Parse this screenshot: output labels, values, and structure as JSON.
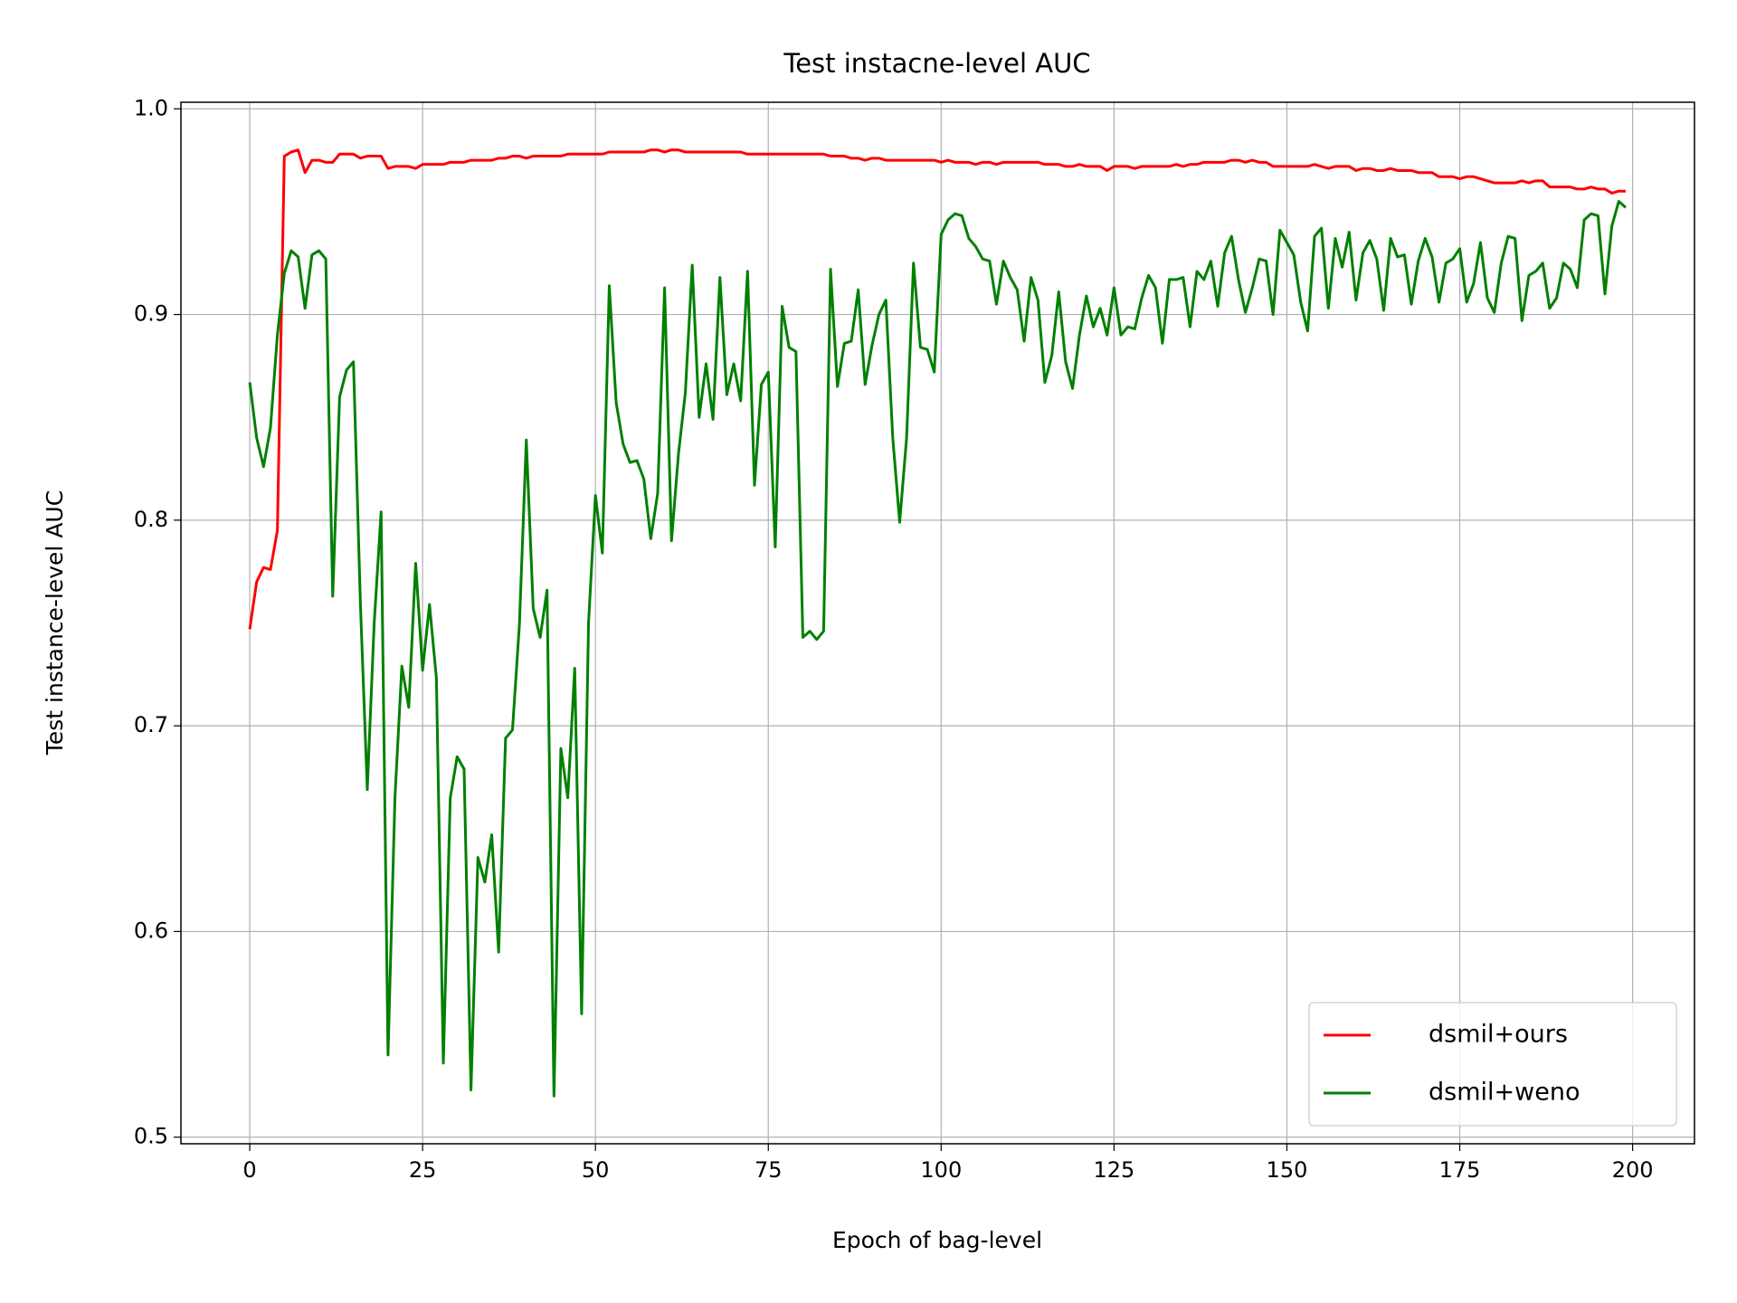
{
  "chart_data": {
    "type": "line",
    "title": "Test instacne-level AUC",
    "x_label": "Epoch of bag-level",
    "y_label": "Test instance-level AUC",
    "x": [
      0,
      1,
      2,
      3,
      4,
      5,
      6,
      7,
      8,
      9,
      10,
      11,
      12,
      13,
      14,
      15,
      16,
      17,
      18,
      19,
      20,
      21,
      22,
      23,
      24,
      25,
      26,
      27,
      28,
      29,
      30,
      31,
      32,
      33,
      34,
      35,
      36,
      37,
      38,
      39,
      40,
      41,
      42,
      43,
      44,
      45,
      46,
      47,
      48,
      49,
      50,
      51,
      52,
      53,
      54,
      55,
      56,
      57,
      58,
      59,
      60,
      61,
      62,
      63,
      64,
      65,
      66,
      67,
      68,
      69,
      70,
      71,
      72,
      73,
      74,
      75,
      76,
      77,
      78,
      79,
      80,
      81,
      82,
      83,
      84,
      85,
      86,
      87,
      88,
      89,
      90,
      91,
      92,
      93,
      94,
      95,
      96,
      97,
      98,
      99,
      100,
      101,
      102,
      103,
      104,
      105,
      106,
      107,
      108,
      109,
      110,
      111,
      112,
      113,
      114,
      115,
      116,
      117,
      118,
      119,
      120,
      121,
      122,
      123,
      124,
      125,
      126,
      127,
      128,
      129,
      130,
      131,
      132,
      133,
      134,
      135,
      136,
      137,
      138,
      139,
      140,
      141,
      142,
      143,
      144,
      145,
      146,
      147,
      148,
      149,
      150,
      151,
      152,
      153,
      154,
      155,
      156,
      157,
      158,
      159,
      160,
      161,
      162,
      163,
      164,
      165,
      166,
      167,
      168,
      169,
      170,
      171,
      172,
      173,
      174,
      175,
      176,
      177,
      178,
      179,
      180,
      181,
      182,
      183,
      184,
      185,
      186,
      187,
      188,
      189,
      190,
      191,
      192,
      193,
      194,
      195,
      196,
      197,
      198,
      199
    ],
    "series": [
      {
        "name": "dsmil+ours",
        "color": "#ff0000",
        "values": [
          0.747,
          0.77,
          0.777,
          0.776,
          0.795,
          0.977,
          0.979,
          0.98,
          0.969,
          0.975,
          0.975,
          0.974,
          0.974,
          0.978,
          0.978,
          0.978,
          0.976,
          0.977,
          0.977,
          0.977,
          0.971,
          0.972,
          0.972,
          0.972,
          0.971,
          0.973,
          0.973,
          0.973,
          0.973,
          0.974,
          0.974,
          0.974,
          0.975,
          0.975,
          0.975,
          0.975,
          0.976,
          0.976,
          0.977,
          0.977,
          0.976,
          0.977,
          0.977,
          0.977,
          0.977,
          0.977,
          0.978,
          0.978,
          0.978,
          0.978,
          0.978,
          0.978,
          0.979,
          0.979,
          0.979,
          0.979,
          0.979,
          0.979,
          0.98,
          0.98,
          0.979,
          0.98,
          0.98,
          0.979,
          0.979,
          0.979,
          0.979,
          0.979,
          0.979,
          0.979,
          0.979,
          0.979,
          0.978,
          0.978,
          0.978,
          0.978,
          0.978,
          0.978,
          0.978,
          0.978,
          0.978,
          0.978,
          0.978,
          0.978,
          0.977,
          0.977,
          0.977,
          0.976,
          0.976,
          0.975,
          0.976,
          0.976,
          0.975,
          0.975,
          0.975,
          0.975,
          0.975,
          0.975,
          0.975,
          0.975,
          0.974,
          0.975,
          0.974,
          0.974,
          0.974,
          0.973,
          0.974,
          0.974,
          0.973,
          0.974,
          0.974,
          0.974,
          0.974,
          0.974,
          0.974,
          0.973,
          0.973,
          0.973,
          0.972,
          0.972,
          0.973,
          0.972,
          0.972,
          0.972,
          0.97,
          0.972,
          0.972,
          0.972,
          0.971,
          0.972,
          0.972,
          0.972,
          0.972,
          0.972,
          0.973,
          0.972,
          0.973,
          0.973,
          0.974,
          0.974,
          0.974,
          0.974,
          0.975,
          0.975,
          0.974,
          0.975,
          0.974,
          0.974,
          0.972,
          0.972,
          0.972,
          0.972,
          0.972,
          0.972,
          0.973,
          0.972,
          0.971,
          0.972,
          0.972,
          0.972,
          0.97,
          0.971,
          0.971,
          0.97,
          0.97,
          0.971,
          0.97,
          0.97,
          0.97,
          0.969,
          0.969,
          0.969,
          0.967,
          0.967,
          0.967,
          0.966,
          0.967,
          0.967,
          0.966,
          0.965,
          0.964,
          0.964,
          0.964,
          0.964,
          0.965,
          0.964,
          0.965,
          0.965,
          0.962,
          0.962,
          0.962,
          0.962,
          0.961,
          0.961,
          0.962,
          0.961,
          0.961,
          0.959,
          0.96,
          0.96
        ]
      },
      {
        "name": "dsmil+weno",
        "color": "#008000",
        "values": [
          0.867,
          0.84,
          0.826,
          0.845,
          0.89,
          0.92,
          0.931,
          0.928,
          0.903,
          0.929,
          0.931,
          0.927,
          0.763,
          0.86,
          0.873,
          0.877,
          0.76,
          0.669,
          0.75,
          0.804,
          0.54,
          0.665,
          0.729,
          0.709,
          0.779,
          0.727,
          0.759,
          0.723,
          0.536,
          0.665,
          0.685,
          0.679,
          0.523,
          0.636,
          0.624,
          0.647,
          0.59,
          0.694,
          0.698,
          0.749,
          0.839,
          0.757,
          0.743,
          0.766,
          0.52,
          0.689,
          0.665,
          0.728,
          0.56,
          0.75,
          0.812,
          0.784,
          0.914,
          0.857,
          0.837,
          0.828,
          0.829,
          0.82,
          0.791,
          0.813,
          0.913,
          0.79,
          0.832,
          0.862,
          0.924,
          0.85,
          0.876,
          0.849,
          0.918,
          0.861,
          0.876,
          0.858,
          0.921,
          0.817,
          0.866,
          0.872,
          0.787,
          0.904,
          0.884,
          0.882,
          0.743,
          0.746,
          0.742,
          0.746,
          0.922,
          0.865,
          0.886,
          0.887,
          0.912,
          0.866,
          0.885,
          0.9,
          0.907,
          0.84,
          0.799,
          0.84,
          0.925,
          0.884,
          0.883,
          0.872,
          0.939,
          0.946,
          0.949,
          0.948,
          0.937,
          0.933,
          0.927,
          0.926,
          0.905,
          0.926,
          0.918,
          0.912,
          0.887,
          0.918,
          0.907,
          0.867,
          0.88,
          0.911,
          0.877,
          0.864,
          0.89,
          0.909,
          0.894,
          0.903,
          0.89,
          0.913,
          0.89,
          0.894,
          0.893,
          0.908,
          0.919,
          0.913,
          0.886,
          0.917,
          0.917,
          0.918,
          0.894,
          0.921,
          0.917,
          0.926,
          0.904,
          0.93,
          0.938,
          0.917,
          0.901,
          0.913,
          0.927,
          0.926,
          0.9,
          0.941,
          0.935,
          0.929,
          0.906,
          0.892,
          0.938,
          0.942,
          0.903,
          0.937,
          0.923,
          0.94,
          0.907,
          0.93,
          0.936,
          0.927,
          0.902,
          0.937,
          0.928,
          0.929,
          0.905,
          0.926,
          0.937,
          0.928,
          0.906,
          0.925,
          0.927,
          0.932,
          0.906,
          0.915,
          0.935,
          0.908,
          0.901,
          0.925,
          0.938,
          0.937,
          0.897,
          0.919,
          0.921,
          0.925,
          0.903,
          0.908,
          0.925,
          0.922,
          0.913,
          0.946,
          0.949,
          0.948,
          0.91,
          0.943,
          0.955,
          0.952
        ]
      }
    ],
    "xlim": [
      -9.95,
      208.95
    ],
    "ylim": [
      0.4968,
      1.0032
    ],
    "xticks": [
      0,
      25,
      50,
      75,
      100,
      125,
      150,
      175,
      200
    ],
    "yticks": [
      0.5,
      0.6,
      0.7,
      0.8,
      0.9,
      {
        "value": 1.0,
        "label": "1.0"
      }
    ],
    "grid": true,
    "legend": "lower right"
  }
}
